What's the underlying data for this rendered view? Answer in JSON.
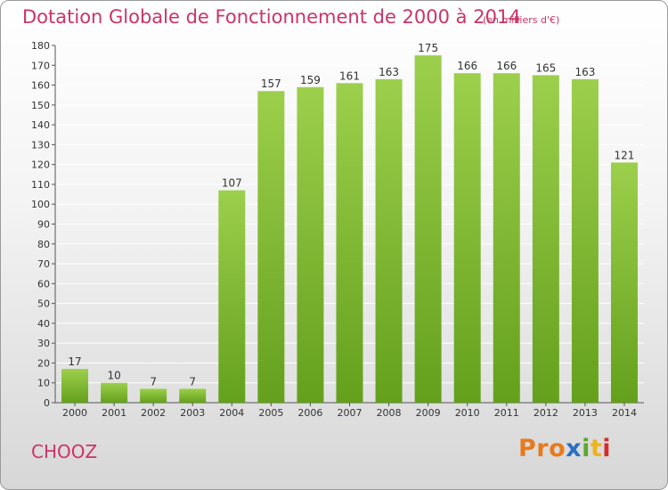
{
  "header": {
    "title": "Dotation Globale de Fonctionnement de 2000 à 2014",
    "subtitle": "(en milliers d'€)"
  },
  "footer": {
    "city": "CHOOZ",
    "brand_parts": [
      "Pro",
      "x",
      "i",
      "t",
      "i"
    ]
  },
  "colors": {
    "title": "#cc3366",
    "bar_top": "#9ccf4c",
    "bar_bottom": "#64a01c",
    "grid": "#ffffff"
  },
  "chart_data": {
    "type": "bar",
    "title": "Dotation Globale de Fonctionnement de 2000 à 2014",
    "subtitle": "(en milliers d'€)",
    "categories": [
      "2000",
      "2001",
      "2002",
      "2003",
      "2004",
      "2005",
      "2006",
      "2007",
      "2008",
      "2009",
      "2010",
      "2011",
      "2012",
      "2013",
      "2014"
    ],
    "values": [
      17,
      10,
      7,
      7,
      107,
      157,
      159,
      161,
      163,
      175,
      166,
      166,
      165,
      163,
      121
    ],
    "labels": [
      "17",
      "10",
      "7",
      "7",
      "107",
      "157",
      "159",
      "161",
      "163",
      "175",
      "166",
      "166",
      "165",
      "163",
      "121"
    ],
    "ylim": [
      0,
      180
    ],
    "yticks": [
      0,
      10,
      20,
      30,
      40,
      50,
      60,
      70,
      80,
      90,
      100,
      110,
      120,
      130,
      140,
      150,
      160,
      170,
      180
    ],
    "ytick_labels": [
      "0",
      "10",
      "20",
      "30",
      "40",
      "50",
      "60",
      "70",
      "80",
      "90",
      "100",
      "110",
      "120",
      "130",
      "140",
      "150",
      "160",
      "170",
      "180"
    ],
    "grid": true,
    "legend": "none"
  }
}
